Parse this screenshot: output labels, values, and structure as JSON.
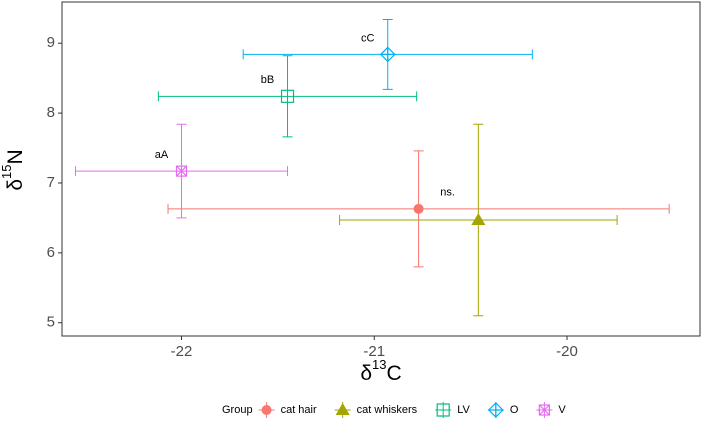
{
  "chart_data": {
    "type": "scatter",
    "x_label": [
      "δ",
      "13",
      "C"
    ],
    "y_label": [
      "δ",
      "15",
      "N"
    ],
    "xlim": [
      -22.62,
      -19.31
    ],
    "ylim": [
      4.81,
      9.59
    ],
    "xticks": [
      -22,
      -21,
      -20
    ],
    "yticks": [
      5,
      6,
      7,
      8,
      9
    ],
    "legend_title": "Group",
    "legend_position": "bottom",
    "series": [
      {
        "name": "cat hair",
        "color": "#F8766D",
        "shape": "circle",
        "label": "ns.",
        "x": [
          -20.77
        ],
        "y": [
          6.63
        ],
        "xerr": [
          1.3
        ],
        "yerr": [
          0.83
        ]
      },
      {
        "name": "cat whiskers",
        "color": "#A3A500",
        "shape": "triangle",
        "x": [
          -20.46
        ],
        "y": [
          6.47
        ],
        "xerr": [
          0.72
        ],
        "yerr": [
          1.37
        ]
      },
      {
        "name": "LV",
        "color": "#00BF7D",
        "shape": "square",
        "label": "bB",
        "x": [
          -21.45
        ],
        "y": [
          8.24
        ],
        "xerr": [
          0.67
        ],
        "yerr": [
          0.58
        ]
      },
      {
        "name": "O",
        "color": "#00B0F6",
        "shape": "diamond-plus",
        "label": "cC",
        "x": [
          -20.93
        ],
        "y": [
          8.84
        ],
        "xerr": [
          0.75
        ],
        "yerr": [
          0.5
        ]
      },
      {
        "name": "V",
        "color": "#E76BF3",
        "shape": "square-cross",
        "label": "aA",
        "x": [
          -22.0
        ],
        "y": [
          7.17
        ],
        "xerr": [
          0.55
        ],
        "yerr": [
          0.67
        ]
      }
    ]
  }
}
